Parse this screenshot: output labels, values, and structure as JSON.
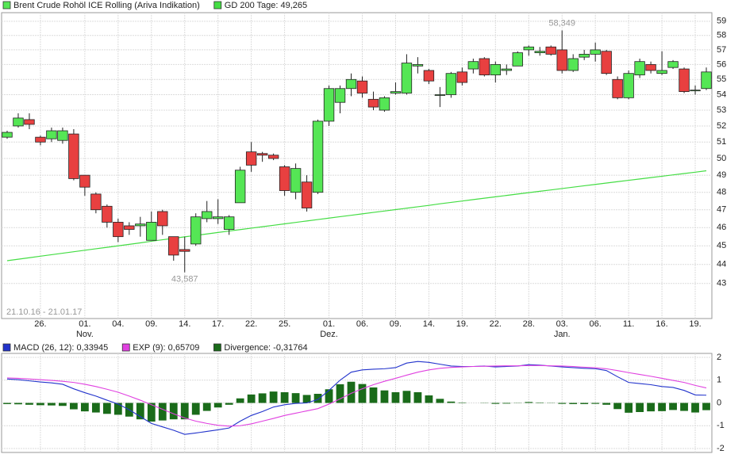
{
  "chart_data": [
    {
      "type": "candlestick",
      "date_range": "21.10.16 - 21.01.17",
      "log_scale": true,
      "grid": true,
      "categories": [
        null,
        null,
        null,
        "26.",
        null,
        null,
        null,
        "01.",
        null,
        null,
        "04.",
        null,
        null,
        "09.",
        null,
        null,
        "14.",
        null,
        null,
        "17.",
        null,
        null,
        "22.",
        null,
        null,
        "25.",
        null,
        null,
        null,
        "01.",
        null,
        null,
        "06.",
        null,
        null,
        "09.",
        null,
        null,
        "14.",
        null,
        null,
        "19.",
        null,
        null,
        "22.",
        null,
        null,
        "28.",
        null,
        null,
        "03.",
        null,
        null,
        "06.",
        null,
        null,
        "11.",
        null,
        null,
        "16.",
        null,
        null,
        "19.",
        null
      ],
      "months": [
        null,
        null,
        null,
        null,
        null,
        null,
        null,
        "Nov.",
        null,
        null,
        null,
        null,
        null,
        null,
        null,
        null,
        null,
        null,
        null,
        null,
        null,
        null,
        null,
        null,
        null,
        null,
        null,
        null,
        null,
        "Dez.",
        null,
        null,
        null,
        null,
        null,
        null,
        null,
        null,
        null,
        null,
        null,
        null,
        null,
        null,
        null,
        null,
        null,
        null,
        null,
        null,
        "Jan.",
        null,
        null,
        null,
        null,
        null,
        null,
        null,
        null,
        null,
        null,
        null,
        null,
        null
      ],
      "ylim": [
        41.3,
        59.5
      ],
      "yticks": [
        43,
        44,
        45,
        46,
        47,
        48,
        49,
        50,
        51,
        52,
        53,
        54,
        55,
        56,
        57,
        58,
        59
      ],
      "annotations": [
        {
          "label": "58,349",
          "value": 58.349
        },
        {
          "label": "43,587",
          "value": 43.587
        }
      ],
      "series": [
        {
          "name": "Brent Crude Rohöl ICE Rolling (Ariva Indikation)",
          "color": "#55e655",
          "color_down": "#e84040",
          "open": [
            51.3,
            52.0,
            52.4,
            51.3,
            51.2,
            51.1,
            51.5,
            49.0,
            47.9,
            47.2,
            46.3,
            46.1,
            46.1,
            45.3,
            46.9,
            45.5,
            44.8,
            45.1,
            46.5,
            46.5,
            45.9,
            47.4,
            50.4,
            50.3,
            50.2,
            49.5,
            48.0,
            48.6,
            48.0,
            52.3,
            53.5,
            54.4,
            54.9,
            53.7,
            53.0,
            54.1,
            54.1,
            55.9,
            55.6,
            54.0,
            54.0,
            55.5,
            55.7,
            56.4,
            55.3,
            55.6,
            55.9,
            57.0,
            56.8,
            57.2,
            57.0,
            55.6,
            56.5,
            56.7,
            56.9,
            55.0,
            53.8,
            55.3,
            56.0,
            55.4,
            55.8,
            55.7,
            54.3,
            54.4
          ],
          "high": [
            51.7,
            52.8,
            52.8,
            51.4,
            51.9,
            51.9,
            51.8,
            49.0,
            48.0,
            47.3,
            46.5,
            46.3,
            46.6,
            46.9,
            47.0,
            45.5,
            45.5,
            46.8,
            47.5,
            47.6,
            46.7,
            49.5,
            51.0,
            50.4,
            50.3,
            49.6,
            49.7,
            49.0,
            52.4,
            54.6,
            54.6,
            55.4,
            55.2,
            54.2,
            53.9,
            54.8,
            56.7,
            56.5,
            55.7,
            54.5,
            55.5,
            55.8,
            56.4,
            56.5,
            56.2,
            56.0,
            56.9,
            57.3,
            57.2,
            57.3,
            58.349,
            56.7,
            57.0,
            57.5,
            57.0,
            55.2,
            55.6,
            56.4,
            56.2,
            56.9,
            56.3,
            55.8,
            54.6,
            55.8
          ],
          "low": [
            51.2,
            51.9,
            51.8,
            50.8,
            51.0,
            50.9,
            48.7,
            47.8,
            46.8,
            46.0,
            45.2,
            45.6,
            45.5,
            45.3,
            45.6,
            44.2,
            43.587,
            45.0,
            46.3,
            46.2,
            45.6,
            47.4,
            49.2,
            49.8,
            49.9,
            47.8,
            47.6,
            46.9,
            47.9,
            52.0,
            52.8,
            53.9,
            53.8,
            53.0,
            52.9,
            54.0,
            54.0,
            55.4,
            54.7,
            53.2,
            53.8,
            54.6,
            55.4,
            55.2,
            54.8,
            55.3,
            55.9,
            56.6,
            56.6,
            56.6,
            55.4,
            55.5,
            56.3,
            56.2,
            55.3,
            53.7,
            53.7,
            55.1,
            55.4,
            55.3,
            55.7,
            54.1,
            54.0,
            54.3
          ],
          "close": [
            51.6,
            52.5,
            52.1,
            51.0,
            51.7,
            51.7,
            48.8,
            48.3,
            47.0,
            46.3,
            45.5,
            45.9,
            46.2,
            46.3,
            46.1,
            44.5,
            44.7,
            46.6,
            46.9,
            46.6,
            46.6,
            49.3,
            49.6,
            50.2,
            50.0,
            48.1,
            49.4,
            47.1,
            52.3,
            54.4,
            54.4,
            55.0,
            54.1,
            53.2,
            53.8,
            54.2,
            56.1,
            56.0,
            54.9,
            54.0,
            55.4,
            54.8,
            56.2,
            55.3,
            56.0,
            55.7,
            56.8,
            57.2,
            56.9,
            56.7,
            55.6,
            56.4,
            56.7,
            57.0,
            55.4,
            53.8,
            55.4,
            56.2,
            55.6,
            55.6,
            56.2,
            54.2,
            54.3,
            55.5
          ]
        },
        {
          "name": "GD 200 Tage: 49,265",
          "color": "#44dd44",
          "values": [
            44.2,
            44.28,
            44.36,
            44.44,
            44.52,
            44.6,
            44.68,
            44.76,
            44.84,
            44.92,
            45.0,
            45.08,
            45.16,
            45.25,
            45.33,
            45.41,
            45.49,
            45.57,
            45.65,
            45.73,
            45.81,
            45.89,
            45.97,
            46.05,
            46.13,
            46.21,
            46.29,
            46.37,
            46.45,
            46.53,
            46.61,
            46.69,
            46.77,
            46.85,
            46.93,
            47.01,
            47.09,
            47.17,
            47.25,
            47.34,
            47.42,
            47.5,
            47.58,
            47.66,
            47.74,
            47.82,
            47.9,
            47.98,
            48.06,
            48.14,
            48.22,
            48.3,
            48.38,
            48.46,
            48.54,
            48.62,
            48.7,
            48.78,
            48.86,
            48.94,
            49.02,
            49.1,
            49.18,
            49.265
          ]
        }
      ]
    },
    {
      "type": "macd",
      "grid": true,
      "ylim": [
        -2.07,
        2.07
      ],
      "yticks": [
        -2,
        -1,
        0,
        1,
        2
      ],
      "series": [
        {
          "name": "MACD (26, 12): 0,33945",
          "color": "#2233cc",
          "kind": "line",
          "values": [
            1.05,
            1.02,
            0.97,
            0.92,
            0.88,
            0.82,
            0.62,
            0.45,
            0.3,
            0.12,
            -0.05,
            -0.3,
            -0.6,
            -0.9,
            -1.05,
            -1.2,
            -1.38,
            -1.32,
            -1.25,
            -1.18,
            -1.1,
            -0.8,
            -0.55,
            -0.38,
            -0.18,
            -0.08,
            -0.02,
            0.0,
            0.15,
            0.55,
            1.0,
            1.35,
            1.45,
            1.48,
            1.5,
            1.55,
            1.75,
            1.82,
            1.78,
            1.7,
            1.62,
            1.6,
            1.6,
            1.62,
            1.58,
            1.6,
            1.62,
            1.68,
            1.66,
            1.62,
            1.58,
            1.55,
            1.52,
            1.5,
            1.42,
            1.15,
            0.9,
            0.85,
            0.8,
            0.72,
            0.68,
            0.55,
            0.35,
            0.33945
          ]
        },
        {
          "name": "EXP (9): 0,65709",
          "color": "#e040e0",
          "kind": "line",
          "values": [
            1.1,
            1.08,
            1.05,
            1.02,
            0.99,
            0.95,
            0.9,
            0.82,
            0.72,
            0.6,
            0.47,
            0.3,
            0.12,
            -0.08,
            -0.28,
            -0.48,
            -0.66,
            -0.8,
            -0.9,
            -0.98,
            -1.02,
            -1.0,
            -0.92,
            -0.8,
            -0.68,
            -0.55,
            -0.45,
            -0.35,
            -0.25,
            -0.05,
            0.18,
            0.42,
            0.62,
            0.8,
            0.95,
            1.08,
            1.22,
            1.35,
            1.45,
            1.52,
            1.56,
            1.58,
            1.6,
            1.61,
            1.62,
            1.63,
            1.63,
            1.64,
            1.64,
            1.63,
            1.62,
            1.6,
            1.57,
            1.54,
            1.5,
            1.42,
            1.33,
            1.25,
            1.17,
            1.08,
            0.99,
            0.9,
            0.77,
            0.65709
          ]
        },
        {
          "name": "Divergence: -0,31764",
          "color": "#1a6b1a",
          "kind": "bar",
          "values": [
            -0.05,
            -0.06,
            -0.08,
            -0.1,
            -0.11,
            -0.13,
            -0.28,
            -0.37,
            -0.42,
            -0.48,
            -0.52,
            -0.6,
            -0.72,
            -0.82,
            -0.77,
            -0.72,
            -0.72,
            -0.52,
            -0.35,
            -0.2,
            -0.08,
            0.2,
            0.37,
            0.42,
            0.5,
            0.47,
            0.43,
            0.35,
            0.4,
            0.6,
            0.82,
            0.93,
            0.83,
            0.68,
            0.55,
            0.47,
            0.53,
            0.47,
            0.33,
            0.18,
            0.06,
            0.02,
            0.0,
            0.01,
            -0.04,
            -0.03,
            -0.01,
            0.04,
            0.02,
            -0.01,
            -0.04,
            -0.05,
            -0.05,
            -0.04,
            -0.08,
            -0.27,
            -0.43,
            -0.4,
            -0.37,
            -0.36,
            -0.31,
            -0.35,
            -0.42,
            -0.31764
          ]
        }
      ]
    }
  ]
}
